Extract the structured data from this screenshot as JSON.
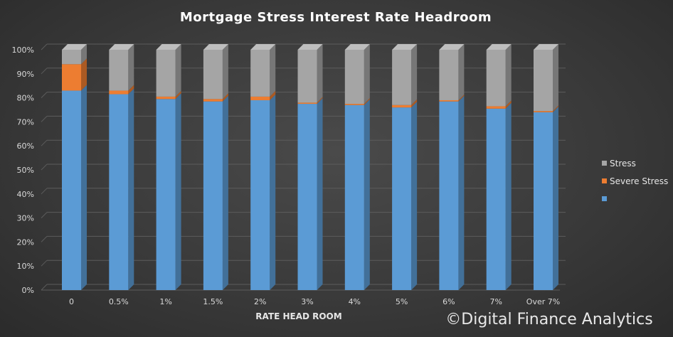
{
  "chart_data": {
    "type": "bar",
    "stacked": true,
    "three_d": true,
    "title": "Mortgage  Stress  Interest  Rate  Headroom",
    "xlabel": "RATE HEAD ROOM",
    "ylabel": "",
    "ylim": [
      0,
      100
    ],
    "y_ticks": [
      "0%",
      "10%",
      "20%",
      "30%",
      "40%",
      "50%",
      "60%",
      "70%",
      "80%",
      "90%",
      "100%"
    ],
    "grid": true,
    "legend_position": "right",
    "categories": [
      "0",
      "0.5%",
      "1%",
      "1.5%",
      "2%",
      "3%",
      "4%",
      "5%",
      "6%",
      "7%",
      "Over 7%"
    ],
    "series": [
      {
        "name": "",
        "color": "#5b9bd5",
        "values": [
          83,
          81.5,
          79.5,
          78.5,
          79,
          77.5,
          77,
          76,
          78.5,
          75.5,
          74
        ]
      },
      {
        "name": "Severe Stress",
        "color": "#ed7d31",
        "values": [
          11,
          1.5,
          1,
          1,
          1.5,
          0.5,
          0.5,
          1,
          0.5,
          1,
          0.5
        ]
      },
      {
        "name": "Stress",
        "color": "#a5a5a5",
        "values": [
          6,
          17,
          19.5,
          20.5,
          19.5,
          22,
          22.5,
          23,
          21,
          23.5,
          25.5
        ]
      }
    ],
    "legend_order": [
      "Stress",
      "Severe Stress",
      ""
    ]
  },
  "credit": "©Digital Finance Analytics"
}
